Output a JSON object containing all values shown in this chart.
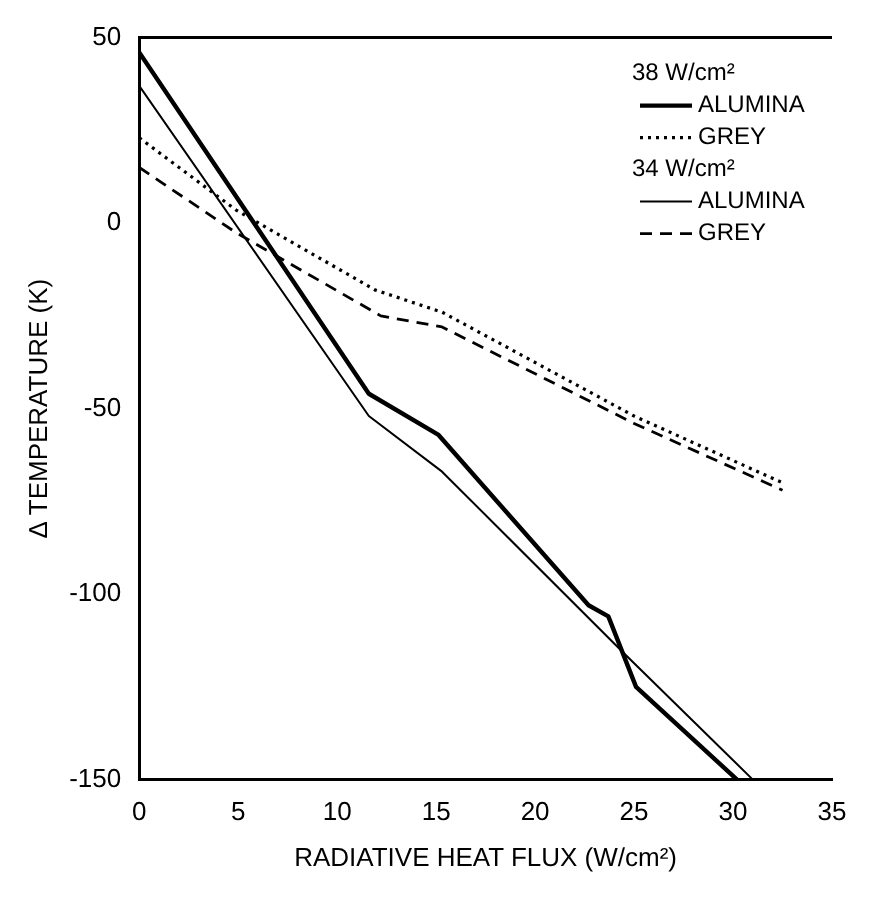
{
  "chart_data": {
    "type": "line",
    "xlabel": "RADIATIVE HEAT FLUX (W/cm²)",
    "ylabel": "Δ TEMPERATURE (K)",
    "xlim": [
      0,
      35
    ],
    "xticks": [
      0,
      5,
      10,
      15,
      20,
      25,
      30,
      35
    ],
    "ylim": [
      -150,
      50
    ],
    "yticks": [
      -150,
      -100,
      -50,
      0,
      50
    ],
    "grid": false,
    "legend": "top right",
    "marker": "none",
    "annotations": [
      "38 W/cm²",
      "34 W/cm²"
    ],
    "series": [
      {
        "name": "ALUMINA",
        "color": "#000000",
        "line_style": "solid",
        "x": [
          0,
          11.6,
          15.1,
          22.7,
          23.7,
          25.1,
          30.2
        ],
        "values": [
          46,
          -46,
          -57,
          -103,
          -106,
          -125,
          -150
        ]
      },
      {
        "name": "GREY",
        "color": "#000000",
        "line_style": "dotted",
        "x": [
          0,
          4.9,
          11.9,
          15.3,
          25,
          32.5
        ],
        "values": [
          23,
          3.5,
          -18,
          -24,
          -52,
          -70
        ]
      },
      {
        "name": "ALUMINA",
        "color": "#000000",
        "line_style": "solid",
        "x": [
          0,
          11.6,
          15.3,
          24.5,
          31
        ],
        "values": [
          37,
          -52,
          -67,
          -116,
          -150
        ]
      },
      {
        "name": "GREY",
        "color": "#000000",
        "line_style": "dashed",
        "x": [
          0,
          4.9,
          12.2,
          15.3,
          25,
          32.5
        ],
        "values": [
          15,
          -2.6,
          -25,
          -28,
          -54,
          -72
        ]
      }
    ]
  }
}
